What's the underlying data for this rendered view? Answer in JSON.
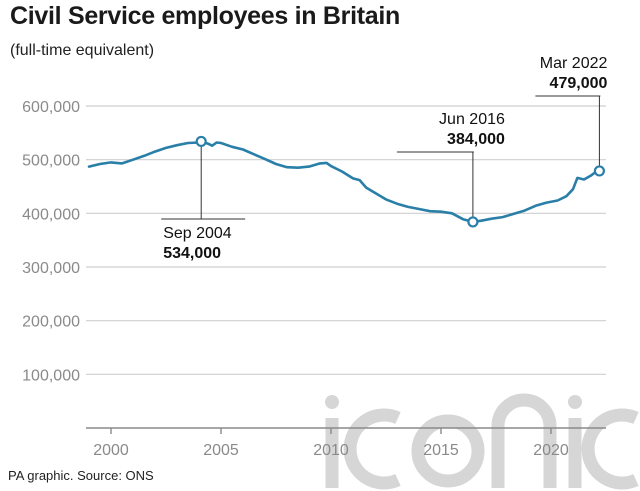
{
  "header": {
    "title": "Civil Service employees in Britain",
    "subtitle": "(full-time equivalent)"
  },
  "footer": {
    "source": "PA graphic. Source: ONS"
  },
  "colors": {
    "line": "#2a7fa8",
    "grid": "#cfcfcf",
    "axis": "#8a8a8a",
    "watermark": "#c9c9c9"
  },
  "chart_data": {
    "type": "line",
    "title": "Civil Service employees in Britain",
    "subtitle": "(full-time equivalent)",
    "xlabel": "",
    "ylabel": "",
    "xlim": [
      1999.0,
      2022.5
    ],
    "ylim": [
      0,
      600000
    ],
    "grid": true,
    "y_ticks": [
      {
        "value": 100000,
        "label": "100,000"
      },
      {
        "value": 200000,
        "label": "200,000"
      },
      {
        "value": 300000,
        "label": "300,000"
      },
      {
        "value": 400000,
        "label": "400,000"
      },
      {
        "value": 500000,
        "label": "500,000"
      },
      {
        "value": 600000,
        "label": "600,000"
      }
    ],
    "x_ticks": [
      {
        "value": 2000,
        "label": "2000"
      },
      {
        "value": 2005,
        "label": "2005"
      },
      {
        "value": 2010,
        "label": "2010"
      },
      {
        "value": 2015,
        "label": "2015"
      },
      {
        "value": 2020,
        "label": "2020"
      }
    ],
    "series": [
      {
        "points": [
          [
            1999.0,
            487000
          ],
          [
            1999.5,
            492000
          ],
          [
            2000.0,
            495000
          ],
          [
            2000.5,
            493000
          ],
          [
            2001.0,
            500000
          ],
          [
            2001.5,
            507000
          ],
          [
            2002.0,
            515000
          ],
          [
            2002.5,
            522000
          ],
          [
            2003.0,
            527000
          ],
          [
            2003.5,
            531000
          ],
          [
            2004.0,
            532000
          ],
          [
            2004.1,
            534000
          ],
          [
            2004.4,
            530000
          ],
          [
            2004.6,
            526000
          ],
          [
            2004.8,
            532000
          ],
          [
            2005.0,
            531000
          ],
          [
            2005.5,
            524000
          ],
          [
            2006.0,
            519000
          ],
          [
            2006.5,
            510000
          ],
          [
            2007.0,
            501000
          ],
          [
            2007.5,
            492000
          ],
          [
            2008.0,
            486000
          ],
          [
            2008.5,
            485000
          ],
          [
            2009.0,
            487000
          ],
          [
            2009.5,
            493000
          ],
          [
            2009.8,
            494000
          ],
          [
            2010.0,
            488000
          ],
          [
            2010.5,
            478000
          ],
          [
            2011.0,
            465000
          ],
          [
            2011.3,
            462000
          ],
          [
            2011.6,
            448000
          ],
          [
            2012.0,
            438000
          ],
          [
            2012.5,
            426000
          ],
          [
            2013.0,
            418000
          ],
          [
            2013.5,
            412000
          ],
          [
            2014.0,
            408000
          ],
          [
            2014.5,
            404000
          ],
          [
            2015.0,
            403000
          ],
          [
            2015.5,
            400000
          ],
          [
            2016.0,
            389000
          ],
          [
            2016.45,
            384000
          ],
          [
            2016.8,
            386000
          ],
          [
            2017.3,
            390000
          ],
          [
            2017.8,
            393000
          ],
          [
            2018.3,
            399000
          ],
          [
            2018.8,
            405000
          ],
          [
            2019.3,
            414000
          ],
          [
            2019.8,
            420000
          ],
          [
            2020.3,
            424000
          ],
          [
            2020.7,
            432000
          ],
          [
            2021.0,
            445000
          ],
          [
            2021.2,
            466000
          ],
          [
            2021.5,
            463000
          ],
          [
            2021.8,
            470000
          ],
          [
            2022.0,
            476000
          ],
          [
            2022.2,
            479000
          ]
        ]
      }
    ],
    "annotations": [
      {
        "label": "Sep 2004",
        "value_label": "534,000",
        "x": 2004.1,
        "y": 534000,
        "position": "below-left"
      },
      {
        "label": "Jun 2016",
        "value_label": "384,000",
        "x": 2016.45,
        "y": 384000,
        "position": "above-left"
      },
      {
        "label": "Mar 2022",
        "value_label": "479,000",
        "x": 2022.2,
        "y": 479000,
        "position": "above-left"
      }
    ]
  }
}
